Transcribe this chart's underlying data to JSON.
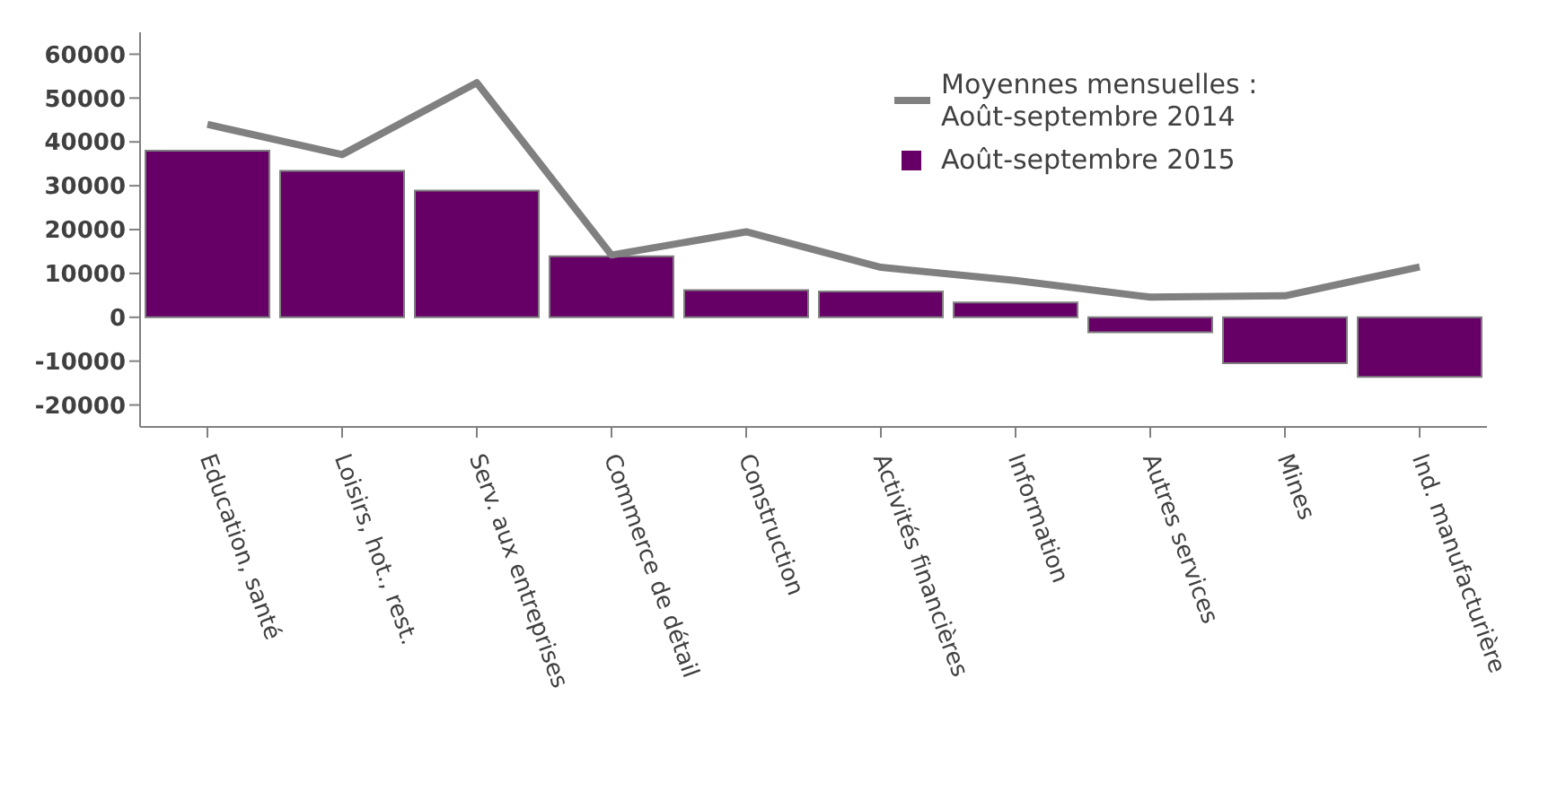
{
  "chart_data": {
    "type": "bar",
    "categories": [
      "Education, santé",
      "Loisirs, hot., rest.",
      "Serv. aux entreprises",
      "Commerce de détail",
      "Construction",
      "Activités financières",
      "Information",
      "Autres services",
      "Mines",
      "Ind. manufacturière"
    ],
    "series": [
      {
        "name": "Moyennes mensuelles : Août-septembre 2014",
        "type": "line",
        "color": "#808080",
        "values": [
          44000,
          37100,
          53500,
          14200,
          19500,
          11400,
          8400,
          4600,
          4900,
          11500
        ]
      },
      {
        "name": "Août-septembre 2015",
        "color": "#660066",
        "values": [
          38000,
          33400,
          28900,
          13900,
          6200,
          5900,
          3400,
          -3400,
          -10500,
          -13600
        ]
      }
    ],
    "ylim": [
      -25000,
      65000
    ],
    "yticks": [
      -20000,
      -10000,
      0,
      10000,
      20000,
      30000,
      40000,
      50000,
      60000
    ],
    "grid": false,
    "legend": "top right",
    "marker": "none",
    "line_style": "solid"
  }
}
